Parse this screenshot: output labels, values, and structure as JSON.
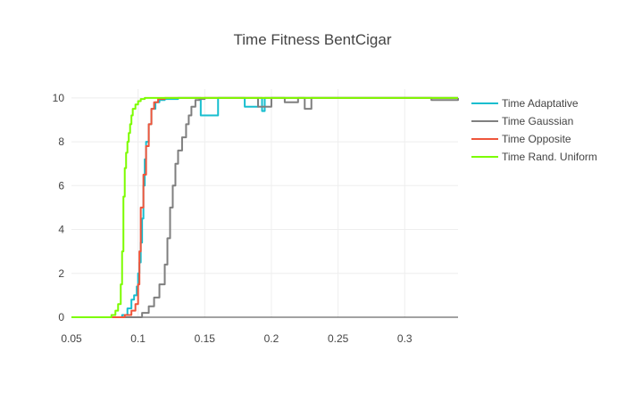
{
  "chart_data": {
    "type": "line",
    "line_shape": "step",
    "title": "Time Fitness BentCigar",
    "xlabel": "",
    "ylabel": "",
    "xlim": [
      0.05,
      0.34
    ],
    "ylim": [
      0,
      10.4
    ],
    "x_ticks": [
      0.05,
      0.1,
      0.15,
      0.2,
      0.25,
      0.3
    ],
    "x_tick_labels": [
      "0.05",
      "0.1",
      "0.15",
      "0.2",
      "0.25",
      "0.3"
    ],
    "y_ticks": [
      0,
      2,
      4,
      6,
      8,
      10
    ],
    "y_tick_labels": [
      "0",
      "2",
      "4",
      "6",
      "8",
      "10"
    ],
    "grid": true,
    "legend_position": "right",
    "series": [
      {
        "name": "Time Adaptative",
        "color": "#17becf",
        "x": [
          0.05,
          0.08,
          0.088,
          0.092,
          0.095,
          0.097,
          0.099,
          0.1,
          0.101,
          0.102,
          0.103,
          0.104,
          0.105,
          0.106,
          0.108,
          0.11,
          0.113,
          0.116,
          0.12,
          0.13,
          0.145,
          0.147,
          0.16,
          0.175,
          0.18,
          0.19,
          0.193,
          0.195,
          0.2,
          0.25,
          0.3,
          0.34
        ],
        "y": [
          0,
          0,
          0.1,
          0.4,
          0.8,
          1.0,
          1.4,
          2.0,
          2.5,
          3.4,
          4.5,
          6.0,
          7.2,
          8.0,
          8.8,
          9.5,
          9.8,
          9.9,
          9.95,
          10,
          10,
          9.2,
          10,
          10,
          9.6,
          10,
          9.4,
          10,
          10,
          10,
          10,
          10
        ]
      },
      {
        "name": "Time Gaussian",
        "color": "#7f7f7f",
        "x": [
          0.05,
          0.1,
          0.103,
          0.108,
          0.112,
          0.116,
          0.12,
          0.122,
          0.124,
          0.126,
          0.128,
          0.13,
          0.133,
          0.136,
          0.138,
          0.14,
          0.143,
          0.146,
          0.15,
          0.16,
          0.19,
          0.2,
          0.21,
          0.22,
          0.225,
          0.23,
          0.3,
          0.32,
          0.34
        ],
        "y": [
          0,
          0,
          0.2,
          0.5,
          0.9,
          1.5,
          2.4,
          3.6,
          5.0,
          6.0,
          7.0,
          7.6,
          8.2,
          8.8,
          9.2,
          9.6,
          9.9,
          9.95,
          10,
          10,
          9.6,
          10,
          9.8,
          10,
          9.5,
          10,
          10,
          9.9,
          10
        ]
      },
      {
        "name": "Time Opposite",
        "color": "#ef553b",
        "x": [
          0.05,
          0.085,
          0.09,
          0.095,
          0.098,
          0.1,
          0.101,
          0.102,
          0.104,
          0.106,
          0.108,
          0.11,
          0.112,
          0.115,
          0.12,
          0.15,
          0.2,
          0.25,
          0.3,
          0.34
        ],
        "y": [
          0,
          0,
          0.1,
          0.3,
          0.6,
          1.5,
          3.0,
          5.0,
          6.5,
          7.8,
          8.8,
          9.5,
          9.8,
          9.95,
          10,
          10,
          10,
          10,
          10,
          10
        ]
      },
      {
        "name": "Time Rand. Uniform",
        "color": "#7cfc00",
        "x": [
          0.05,
          0.075,
          0.08,
          0.083,
          0.085,
          0.087,
          0.088,
          0.089,
          0.09,
          0.091,
          0.092,
          0.093,
          0.094,
          0.095,
          0.096,
          0.098,
          0.1,
          0.102,
          0.105,
          0.11,
          0.12,
          0.15,
          0.2,
          0.25,
          0.3,
          0.34
        ],
        "y": [
          0,
          0,
          0.1,
          0.3,
          0.6,
          1.5,
          3.0,
          5.5,
          6.8,
          7.5,
          8.0,
          8.4,
          8.8,
          9.2,
          9.5,
          9.7,
          9.85,
          9.95,
          10,
          10,
          10,
          10,
          10,
          10,
          10,
          10
        ]
      }
    ]
  }
}
